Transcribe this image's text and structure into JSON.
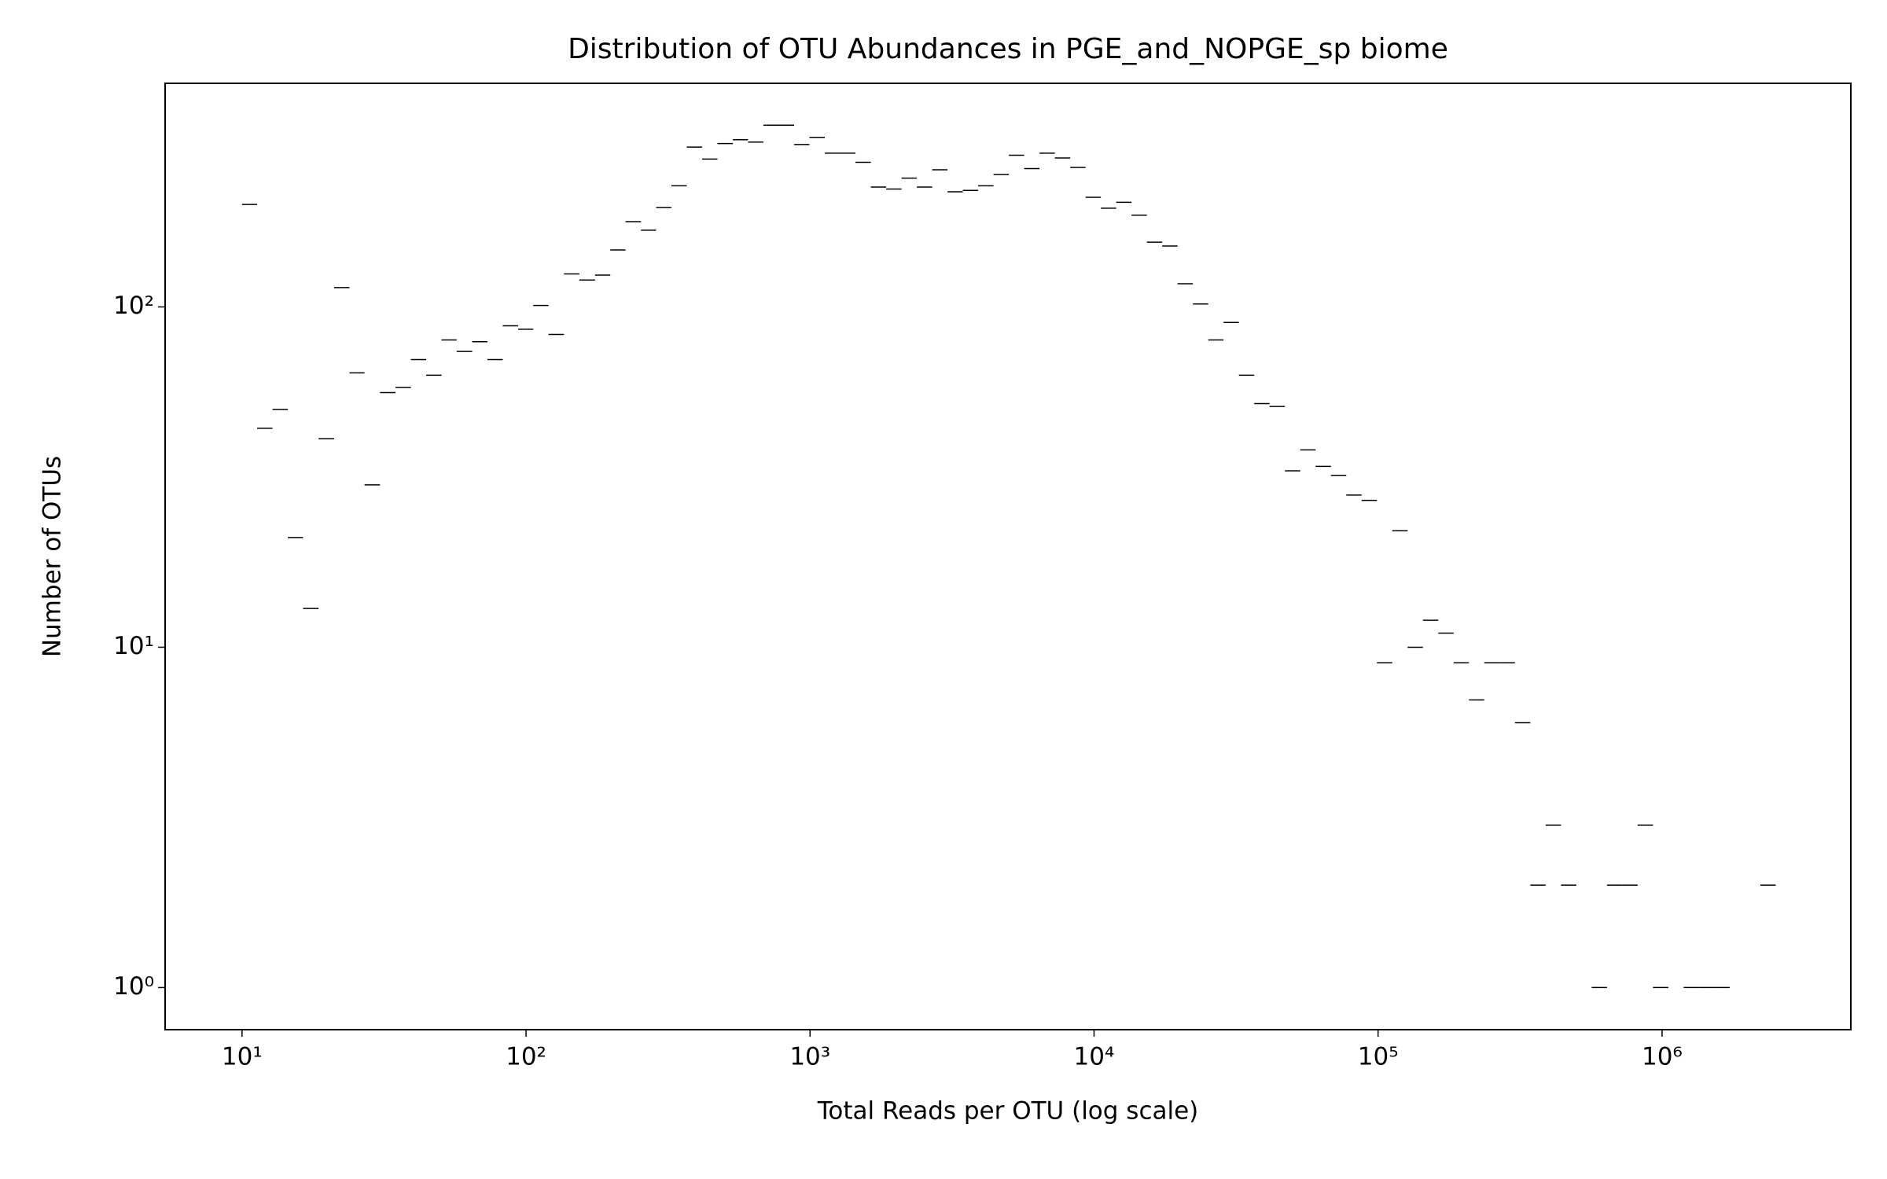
{
  "chart_data": {
    "type": "histogram",
    "title": "Distribution of OTU Abundances in PGE_and_NOPGE_sp biome",
    "xlabel": "Total Reads per OTU (log scale)",
    "ylabel": "Number of OTUs",
    "xscale": "log",
    "yscale": "log",
    "color": "#000000",
    "bins": [
      10,
      11.3,
      12.8,
      14.5,
      16.4,
      18.6,
      21.1,
      23.9,
      27.0,
      30.6,
      34.7,
      39.3,
      44.5,
      50.4,
      57.0,
      64.6,
      73.1,
      82.8,
      93.8,
      106,
      120,
      136,
      154,
      175,
      198,
      224,
      254,
      287,
      325,
      368,
      417,
      472,
      535,
      605,
      685,
      776,
      879,
      995,
      1127,
      1276,
      1445,
      1637,
      1854,
      2099,
      2377,
      2692,
      3048,
      3451,
      3908,
      4426,
      5012,
      5675,
      6427,
      7278,
      8241,
      9333,
      10568,
      11967,
      13552,
      15346,
      17378,
      19679,
      22284,
      25235,
      28576,
      32359,
      36644,
      41495,
      46989,
      53211,
      60256,
      68234,
      77268,
      87498,
      99083,
      112202,
      127057,
      143880,
      162930,
      184502,
      208930,
      236592,
      267917,
      303389,
      343558,
      389045,
      440555,
      498884,
      564937,
      639735,
      724436,
      820352,
      928966,
      1051962,
      1191242,
      1348963,
      1527566,
      1729816,
      1958845,
      2218196,
      2511886
    ],
    "values": [
      200,
      44,
      50,
      21,
      13,
      41,
      114,
      64,
      30,
      56,
      58,
      70,
      63,
      80,
      74,
      79,
      70,
      88,
      86,
      101,
      83,
      125,
      120,
      124,
      147,
      178,
      168,
      196,
      227,
      295,
      272,
      302,
      310,
      305,
      342,
      342,
      300,
      315,
      283,
      283,
      266,
      225,
      222,
      239,
      225,
      253,
      218,
      220,
      227,
      245,
      279,
      255,
      283,
      274,
      257,
      210,
      195,
      203,
      186,
      155,
      151,
      117,
      102,
      80,
      90,
      63,
      52,
      51,
      33,
      38,
      34,
      32,
      28,
      27,
      9,
      22,
      10,
      12,
      11,
      9,
      7,
      9,
      9,
      6,
      2,
      3,
      2,
      0,
      1,
      2,
      2,
      3,
      1,
      0,
      1,
      1,
      1,
      0,
      0,
      2
    ],
    "xlim": [
      5.36,
      4620000
    ],
    "ylim": [
      0.752,
      454
    ],
    "xticks": [
      {
        "value": 10,
        "label": "10¹"
      },
      {
        "value": 100,
        "label": "10²"
      },
      {
        "value": 1000,
        "label": "10³"
      },
      {
        "value": 10000,
        "label": "10⁴"
      },
      {
        "value": 100000,
        "label": "10⁵"
      },
      {
        "value": 1000000,
        "label": "10⁶"
      }
    ],
    "yticks": [
      {
        "value": 1,
        "label": "10⁰"
      },
      {
        "value": 10,
        "label": "10¹"
      },
      {
        "value": 100,
        "label": "10²"
      }
    ]
  }
}
